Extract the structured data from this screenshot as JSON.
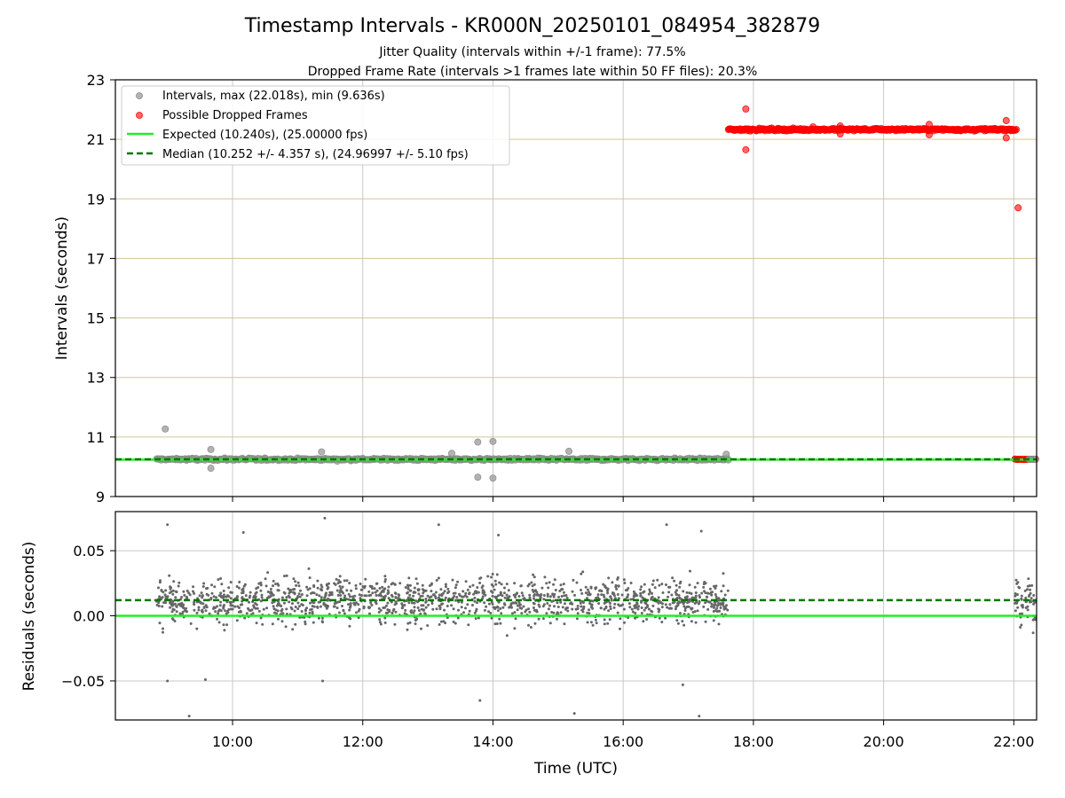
{
  "chart_data": [
    {
      "type": "scatter",
      "title": "Timestamp Intervals - KR000N_20250101_084954_382879",
      "subtitle_lines": [
        "Jitter Quality (intervals within +/-1 frame): 77.5%",
        "Dropped Frame Rate (intervals >1 frames late within 50 FF files): 20.3%"
      ],
      "ylabel": "Intervals (seconds)",
      "ylim": [
        9,
        23
      ],
      "yticks": [
        "9",
        "11",
        "13",
        "15",
        "17",
        "19",
        "21",
        "23"
      ],
      "xlim_hours": [
        8.2,
        22.35
      ],
      "grid": true,
      "legend_position": "top-left",
      "legend": [
        "Intervals, max (22.018s), min (9.636s)",
        "Possible Dropped Frames",
        "Expected (10.240s), (25.00000 fps)",
        "Median (10.252 +/- 4.357 s), (24.96997 +/- 5.10 fps)"
      ],
      "expected_interval": 10.24,
      "median_interval": 10.252,
      "series": [
        {
          "name": "Intervals, max (22.018s), min (9.636s)",
          "color": "#999999",
          "band": {
            "x_start": "08:50",
            "x_end": "17:37",
            "center": 10.25,
            "spread": 0.08
          },
          "outliers": [
            {
              "x": "08:58",
              "y": 11.27
            },
            {
              "x": "09:40",
              "y": 10.58
            },
            {
              "x": "11:22",
              "y": 10.5
            },
            {
              "x": "13:22",
              "y": 10.45
            },
            {
              "x": "13:46",
              "y": 10.83
            },
            {
              "x": "14:00",
              "y": 10.85
            },
            {
              "x": "13:46",
              "y": 9.65
            },
            {
              "x": "14:00",
              "y": 9.62
            },
            {
              "x": "15:10",
              "y": 10.52
            },
            {
              "x": "17:35",
              "y": 10.42
            },
            {
              "x": "09:40",
              "y": 9.95
            }
          ]
        },
        {
          "name": "Possible Dropped Frames",
          "color": "#ff0000",
          "band": {
            "x_start": "17:37",
            "x_end": "22:02",
            "center": 21.33,
            "spread": 0.08
          },
          "low_band": {
            "x_start": "22:01",
            "x_end": "22:20",
            "center": 10.25
          },
          "outliers": [
            {
              "x": "17:53",
              "y": 22.02
            },
            {
              "x": "17:53",
              "y": 20.65
            },
            {
              "x": "18:55",
              "y": 21.42
            },
            {
              "x": "19:20",
              "y": 21.45
            },
            {
              "x": "19:20",
              "y": 21.18
            },
            {
              "x": "20:42",
              "y": 21.5
            },
            {
              "x": "20:42",
              "y": 21.15
            },
            {
              "x": "21:53",
              "y": 21.63
            },
            {
              "x": "21:53",
              "y": 21.05
            },
            {
              "x": "22:04",
              "y": 18.7
            }
          ]
        }
      ]
    },
    {
      "type": "scatter",
      "ylabel": "Residuals (seconds)",
      "xlabel": "Time (UTC)",
      "ylim": [
        -0.08,
        0.08
      ],
      "yticks": [
        "−0.05",
        "0.00",
        "0.05"
      ],
      "xticks": [
        "10:00",
        "12:00",
        "14:00",
        "16:00",
        "18:00",
        "20:00",
        "22:00"
      ],
      "grid": true,
      "expected_residual": 0.0,
      "median_residual": 0.012,
      "series": [
        {
          "color": "#666666",
          "segments": [
            {
              "x_start": "08:50",
              "x_end": "17:37",
              "center": 0.012,
              "spread": 0.02
            },
            {
              "x_start": "22:01",
              "x_end": "22:20",
              "center": 0.012,
              "spread": 0.02
            }
          ],
          "outliers": [
            {
              "x": "09:00",
              "y": 0.07
            },
            {
              "x": "09:00",
              "y": -0.05
            },
            {
              "x": "09:20",
              "y": -0.077
            },
            {
              "x": "09:35",
              "y": -0.049
            },
            {
              "x": "10:10",
              "y": 0.064
            },
            {
              "x": "11:25",
              "y": 0.075
            },
            {
              "x": "11:23",
              "y": -0.05
            },
            {
              "x": "13:10",
              "y": 0.07
            },
            {
              "x": "13:48",
              "y": -0.065
            },
            {
              "x": "14:05",
              "y": 0.062
            },
            {
              "x": "15:15",
              "y": -0.075
            },
            {
              "x": "16:40",
              "y": 0.07
            },
            {
              "x": "16:55",
              "y": -0.053
            },
            {
              "x": "17:10",
              "y": -0.077
            },
            {
              "x": "17:12",
              "y": 0.065
            }
          ]
        }
      ]
    }
  ]
}
